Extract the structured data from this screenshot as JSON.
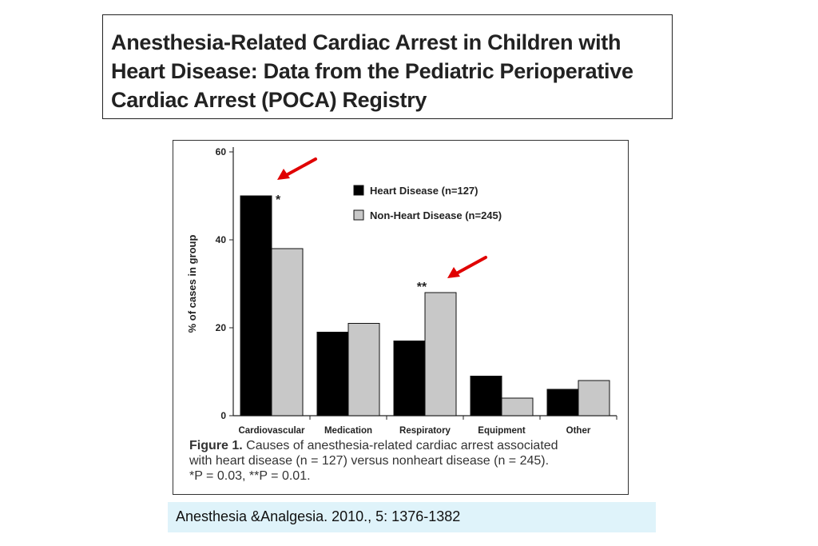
{
  "slide": {
    "title_lines": [
      "Anesthesia-Related Cardiac Arrest in Children with",
      "Heart Disease: Data from the Pediatric Perioperative",
      "Cardiac Arrest (POCA) Registry"
    ],
    "citation": "Anesthesia &Analgesia. 2010., 5: 1376-1382",
    "arrow_color": "#e00000"
  },
  "figure": {
    "caption_label": "Figure 1.",
    "caption_lines": [
      "Causes of anesthesia-related cardiac arrest associated",
      "with heart disease (n = 127) versus nonheart disease (n = 245).",
      "*P = 0.03, **P = 0.01."
    ]
  },
  "chart_data": {
    "type": "bar",
    "categories": [
      "Cardiovascular",
      "Medication",
      "Respiratory",
      "Equipment",
      "Other"
    ],
    "series": [
      {
        "name": "Heart Disease (n=127)",
        "color": "#000000",
        "values": [
          50,
          19,
          17,
          9,
          6
        ]
      },
      {
        "name": "Non-Heart Disease (n=245)",
        "color": "#c8c8c8",
        "values": [
          38,
          21,
          28,
          4,
          8
        ]
      }
    ],
    "ylabel": "% of cases in group",
    "ylim": [
      0,
      60
    ],
    "yticks": [
      0,
      20,
      40,
      60
    ],
    "legend_position": "top-right",
    "grid": false,
    "annotations": [
      {
        "text": "*",
        "category": "Cardiovascular",
        "series": 0
      },
      {
        "text": "**",
        "category": "Respiratory",
        "series": 1
      }
    ]
  }
}
